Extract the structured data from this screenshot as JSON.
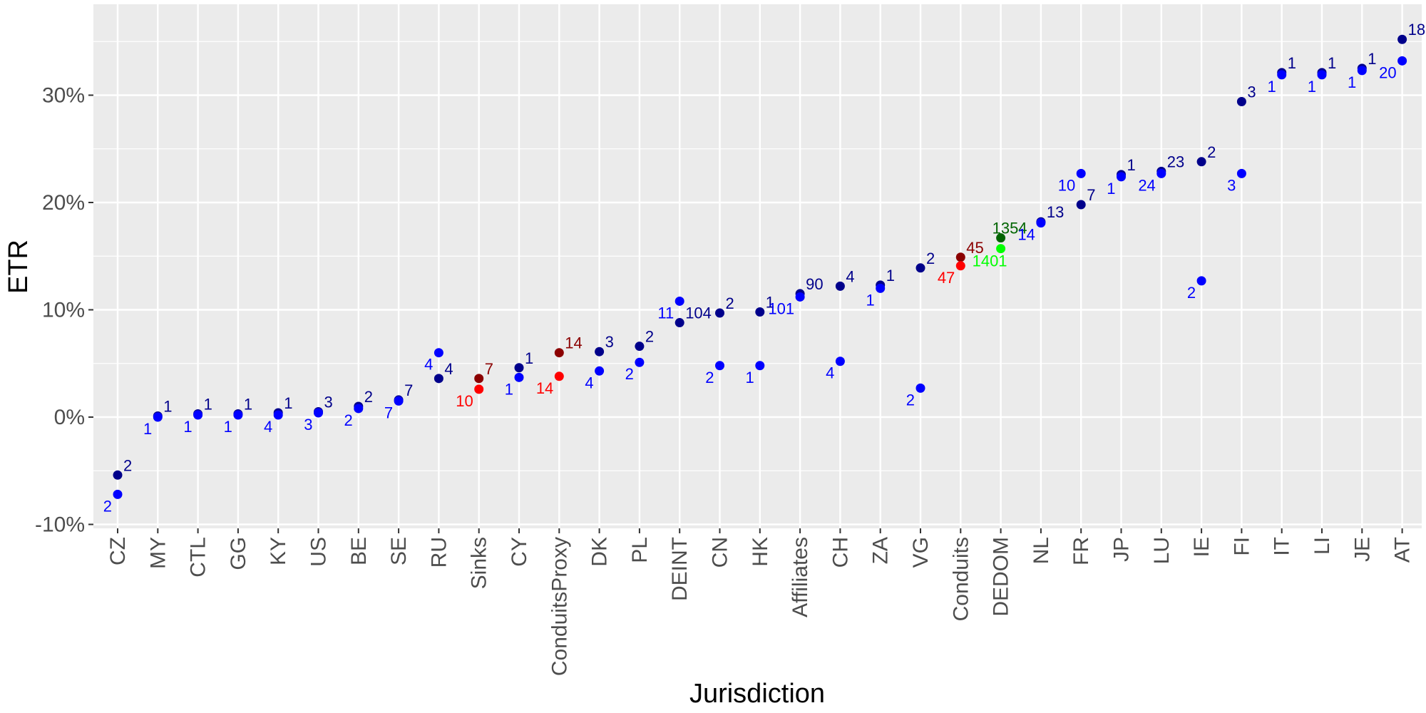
{
  "chart_data": {
    "type": "scatter",
    "xlabel": "Jurisdiction",
    "ylabel": "ETR",
    "ylim": [
      -0.105,
      0.38
    ],
    "yticks": [
      -0.1,
      0,
      0.1,
      0.2,
      0.3
    ],
    "ytick_labels": [
      "-10%",
      "0%",
      "10%",
      "20%",
      "30%"
    ],
    "grid": true,
    "legend": "none",
    "categories": [
      "CZ",
      "MY",
      "CTL",
      "GG",
      "KY",
      "US",
      "BE",
      "SE",
      "RU",
      "Sinks",
      "CY",
      "ConduitsProxy",
      "DK",
      "PL",
      "DEINT",
      "CN",
      "HK",
      "Affiliates",
      "CH",
      "ZA",
      "VG",
      "Conduits",
      "DEDOM",
      "NL",
      "FR",
      "JP",
      "LU",
      "IE",
      "FI",
      "IT",
      "LI",
      "JE",
      "AT"
    ],
    "colors": {
      "navy": "#00008b",
      "blue": "#0000ff",
      "darkred": "#8b0000",
      "red": "#ff0000",
      "darkgreen": "#006400",
      "green": "#00ff00",
      "panel": "#ebebeb",
      "grid": "#ffffff"
    },
    "points": [
      {
        "x": "CZ",
        "y": -0.054,
        "label": "2",
        "color": "navy",
        "pos": "right"
      },
      {
        "x": "CZ",
        "y": -0.072,
        "label": "2",
        "color": "blue",
        "pos": "left"
      },
      {
        "x": "MY",
        "y": 0.001,
        "label": "1",
        "color": "navy",
        "pos": "right"
      },
      {
        "x": "MY",
        "y": 0.0,
        "label": "1",
        "color": "blue",
        "pos": "left"
      },
      {
        "x": "CTL",
        "y": 0.003,
        "label": "1",
        "color": "navy",
        "pos": "right"
      },
      {
        "x": "CTL",
        "y": 0.002,
        "label": "1",
        "color": "blue",
        "pos": "left"
      },
      {
        "x": "GG",
        "y": 0.003,
        "label": "1",
        "color": "navy",
        "pos": "right"
      },
      {
        "x": "GG",
        "y": 0.002,
        "label": "1",
        "color": "blue",
        "pos": "left"
      },
      {
        "x": "KY",
        "y": 0.004,
        "label": "1",
        "color": "navy",
        "pos": "right"
      },
      {
        "x": "KY",
        "y": 0.002,
        "label": "4",
        "color": "blue",
        "pos": "left"
      },
      {
        "x": "US",
        "y": 0.005,
        "label": "3",
        "color": "navy",
        "pos": "right"
      },
      {
        "x": "US",
        "y": 0.004,
        "label": "3",
        "color": "blue",
        "pos": "left"
      },
      {
        "x": "BE",
        "y": 0.01,
        "label": "2",
        "color": "navy",
        "pos": "right"
      },
      {
        "x": "BE",
        "y": 0.008,
        "label": "2",
        "color": "blue",
        "pos": "left"
      },
      {
        "x": "SE",
        "y": 0.016,
        "label": "7",
        "color": "navy",
        "pos": "right"
      },
      {
        "x": "SE",
        "y": 0.015,
        "label": "7",
        "color": "blue",
        "pos": "left"
      },
      {
        "x": "RU",
        "y": 0.036,
        "label": "4",
        "color": "navy",
        "pos": "right"
      },
      {
        "x": "RU",
        "y": 0.06,
        "label": "4",
        "color": "blue",
        "pos": "left"
      },
      {
        "x": "Sinks",
        "y": 0.036,
        "label": "7",
        "color": "darkred",
        "pos": "right"
      },
      {
        "x": "Sinks",
        "y": 0.026,
        "label": "10",
        "color": "red",
        "pos": "left"
      },
      {
        "x": "CY",
        "y": 0.046,
        "label": "1",
        "color": "navy",
        "pos": "right"
      },
      {
        "x": "CY",
        "y": 0.037,
        "label": "1",
        "color": "blue",
        "pos": "left"
      },
      {
        "x": "ConduitsProxy",
        "y": 0.06,
        "label": "14",
        "color": "darkred",
        "pos": "right"
      },
      {
        "x": "ConduitsProxy",
        "y": 0.038,
        "label": "14",
        "color": "red",
        "pos": "left"
      },
      {
        "x": "DK",
        "y": 0.061,
        "label": "3",
        "color": "navy",
        "pos": "right"
      },
      {
        "x": "DK",
        "y": 0.043,
        "label": "4",
        "color": "blue",
        "pos": "left"
      },
      {
        "x": "PL",
        "y": 0.066,
        "label": "2",
        "color": "navy",
        "pos": "right"
      },
      {
        "x": "PL",
        "y": 0.051,
        "label": "2",
        "color": "blue",
        "pos": "left"
      },
      {
        "x": "DEINT",
        "y": 0.088,
        "label": "104",
        "color": "navy",
        "pos": "right"
      },
      {
        "x": "DEINT",
        "y": 0.108,
        "label": "11",
        "color": "blue",
        "pos": "left"
      },
      {
        "x": "CN",
        "y": 0.097,
        "label": "2",
        "color": "navy",
        "pos": "right"
      },
      {
        "x": "CN",
        "y": 0.048,
        "label": "2",
        "color": "blue",
        "pos": "left"
      },
      {
        "x": "HK",
        "y": 0.098,
        "label": "1",
        "color": "navy",
        "pos": "right"
      },
      {
        "x": "HK",
        "y": 0.048,
        "label": "1",
        "color": "blue",
        "pos": "left"
      },
      {
        "x": "Affiliates",
        "y": 0.115,
        "label": "90",
        "color": "navy",
        "pos": "right"
      },
      {
        "x": "Affiliates",
        "y": 0.112,
        "label": "101",
        "color": "blue",
        "pos": "left"
      },
      {
        "x": "CH",
        "y": 0.122,
        "label": "4",
        "color": "navy",
        "pos": "right"
      },
      {
        "x": "CH",
        "y": 0.052,
        "label": "4",
        "color": "blue",
        "pos": "left"
      },
      {
        "x": "ZA",
        "y": 0.123,
        "label": "1",
        "color": "navy",
        "pos": "right"
      },
      {
        "x": "ZA",
        "y": 0.12,
        "label": "1",
        "color": "blue",
        "pos": "left"
      },
      {
        "x": "VG",
        "y": 0.139,
        "label": "2",
        "color": "navy",
        "pos": "right"
      },
      {
        "x": "VG",
        "y": 0.027,
        "label": "2",
        "color": "blue",
        "pos": "left"
      },
      {
        "x": "Conduits",
        "y": 0.149,
        "label": "45",
        "color": "darkred",
        "pos": "right"
      },
      {
        "x": "Conduits",
        "y": 0.141,
        "label": "47",
        "color": "red",
        "pos": "left"
      },
      {
        "x": "DEDOM",
        "y": 0.167,
        "label": "1354",
        "color": "darkgreen",
        "pos": "top"
      },
      {
        "x": "DEDOM",
        "y": 0.157,
        "label": "1401",
        "color": "green",
        "pos": "bottom"
      },
      {
        "x": "NL",
        "y": 0.182,
        "label": "13",
        "color": "navy",
        "pos": "right"
      },
      {
        "x": "NL",
        "y": 0.181,
        "label": "14",
        "color": "blue",
        "pos": "left"
      },
      {
        "x": "FR",
        "y": 0.198,
        "label": "7",
        "color": "navy",
        "pos": "right"
      },
      {
        "x": "FR",
        "y": 0.227,
        "label": "10",
        "color": "blue",
        "pos": "left"
      },
      {
        "x": "JP",
        "y": 0.226,
        "label": "1",
        "color": "navy",
        "pos": "right"
      },
      {
        "x": "JP",
        "y": 0.224,
        "label": "1",
        "color": "blue",
        "pos": "left"
      },
      {
        "x": "LU",
        "y": 0.229,
        "label": "23",
        "color": "navy",
        "pos": "right"
      },
      {
        "x": "LU",
        "y": 0.227,
        "label": "24",
        "color": "blue",
        "pos": "left"
      },
      {
        "x": "IE",
        "y": 0.238,
        "label": "2",
        "color": "navy",
        "pos": "right"
      },
      {
        "x": "IE",
        "y": 0.127,
        "label": "2",
        "color": "blue",
        "pos": "left"
      },
      {
        "x": "FI",
        "y": 0.294,
        "label": "3",
        "color": "navy",
        "pos": "right"
      },
      {
        "x": "FI",
        "y": 0.227,
        "label": "3",
        "color": "blue",
        "pos": "left"
      },
      {
        "x": "IT",
        "y": 0.321,
        "label": "1",
        "color": "navy",
        "pos": "right"
      },
      {
        "x": "IT",
        "y": 0.319,
        "label": "1",
        "color": "blue",
        "pos": "left"
      },
      {
        "x": "LI",
        "y": 0.321,
        "label": "1",
        "color": "navy",
        "pos": "right"
      },
      {
        "x": "LI",
        "y": 0.319,
        "label": "1",
        "color": "blue",
        "pos": "left"
      },
      {
        "x": "JE",
        "y": 0.325,
        "label": "1",
        "color": "navy",
        "pos": "right"
      },
      {
        "x": "JE",
        "y": 0.323,
        "label": "1",
        "color": "blue",
        "pos": "left"
      },
      {
        "x": "AT",
        "y": 0.352,
        "label": "18",
        "color": "navy",
        "pos": "right"
      },
      {
        "x": "AT",
        "y": 0.332,
        "label": "20",
        "color": "blue",
        "pos": "left"
      }
    ]
  }
}
